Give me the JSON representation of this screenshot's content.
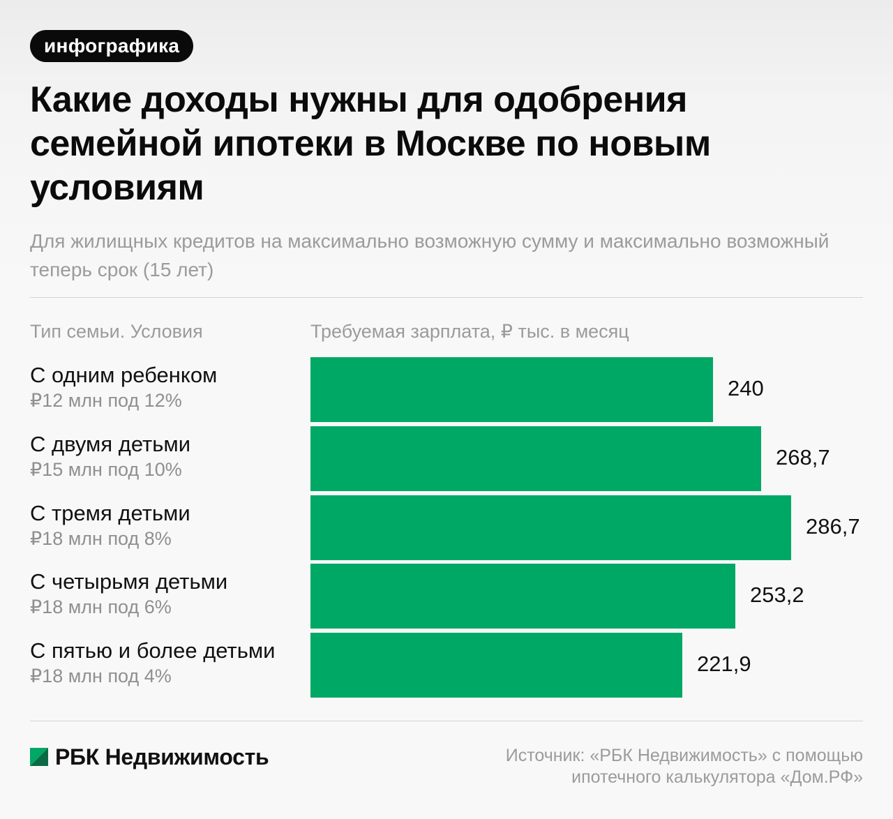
{
  "badge": "инфографика",
  "title": "Какие доходы нужны для одобрения семейной ипотеки в Москве по новым условиям",
  "subtitle": "Для жилищных кредитов на максимально возможную сумму и максимально возможный теперь срок (15 лет)",
  "columns": {
    "left": "Тип семьи. Условия",
    "right": "Требуемая зарплата, ₽ тыс. в месяц"
  },
  "chart_data": {
    "type": "bar",
    "orientation": "horizontal",
    "title": "Какие доходы нужны для одобрения семейной ипотеки в Москве по новым условиям",
    "xlabel": "Требуемая зарплата, ₽ тыс. в месяц",
    "ylabel": "Тип семьи. Условия",
    "categories": [
      "С одним ребенком",
      "С двумя детьми",
      "С тремя детьми",
      "С четырьмя детьми",
      "С пятью и более детьми"
    ],
    "conditions": [
      "₽12 млн под 12%",
      "₽15 млн под 10%",
      "₽18 млн под 8%",
      "₽18 млн под 6%",
      "₽18 млн под 4%"
    ],
    "values": [
      240,
      268.7,
      286.7,
      253.2,
      221.9
    ],
    "value_labels": [
      "240",
      "268,7",
      "286,7",
      "253,2",
      "221,9"
    ],
    "bar_color": "#00a865",
    "grid": false,
    "legend": "none"
  },
  "footer": {
    "brand": "РБК Недвижимость",
    "source": "Источник: «РБК Недвижимость» с помощью ипотечного калькулятора «Дом.РФ»"
  }
}
